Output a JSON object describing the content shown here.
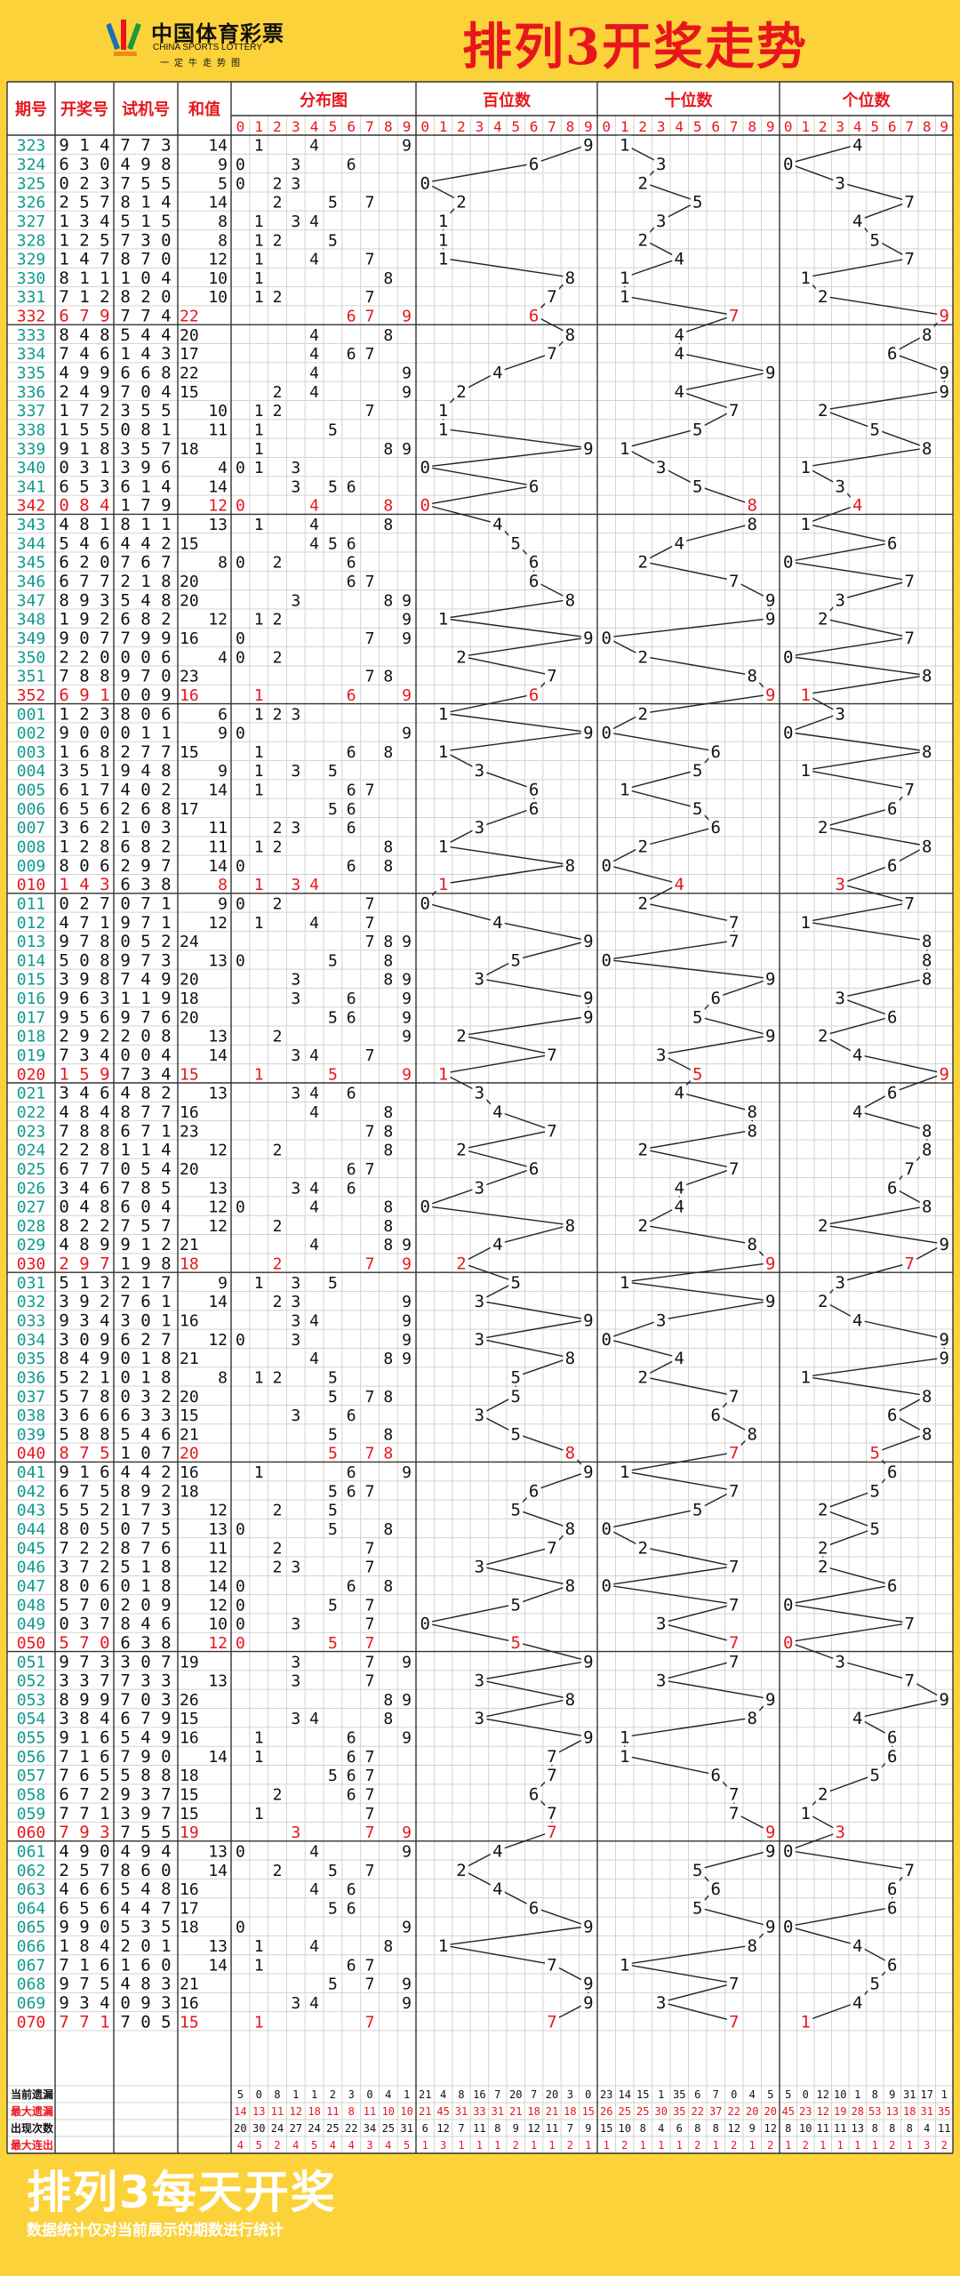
{
  "header": {
    "logo_cn": "中国体育彩票",
    "logo_en": "CHINA SPORTS LOTTERY",
    "logo_slogan": "一定牛走势图",
    "title": "排列3开奖走势"
  },
  "footer": {
    "title": "排列3每天开奖",
    "note": "数据统计仅对当前展示的期数进行统计"
  },
  "colors": {
    "background": "#fcd23a",
    "red": "#e8161c",
    "issue_green": "#0f9b8e",
    "grid": "#d3d3d3",
    "section": "#333333"
  },
  "chart_data": {
    "type": "table",
    "columns": {
      "issue": "期号",
      "draw": "开奖号",
      "test": "试机号",
      "sum": "和值",
      "dist": "分布图",
      "hundreds": "百位数",
      "tens": "十位数",
      "units": "个位数"
    },
    "digits": [
      "0",
      "1",
      "2",
      "3",
      "4",
      "5",
      "6",
      "7",
      "8",
      "9"
    ],
    "rows": [
      [
        "323",
        "914",
        "773"
      ],
      [
        "324",
        "630",
        "498"
      ],
      [
        "325",
        "023",
        "755"
      ],
      [
        "326",
        "257",
        "814"
      ],
      [
        "327",
        "134",
        "515"
      ],
      [
        "328",
        "125",
        "730"
      ],
      [
        "329",
        "147",
        "870"
      ],
      [
        "330",
        "811",
        "104"
      ],
      [
        "331",
        "712",
        "820"
      ],
      [
        "332",
        "679",
        "774"
      ],
      [
        "333",
        "848",
        "544"
      ],
      [
        "334",
        "746",
        "143"
      ],
      [
        "335",
        "499",
        "668"
      ],
      [
        "336",
        "249",
        "704"
      ],
      [
        "337",
        "172",
        "355"
      ],
      [
        "338",
        "155",
        "081"
      ],
      [
        "339",
        "918",
        "357"
      ],
      [
        "340",
        "031",
        "396"
      ],
      [
        "341",
        "653",
        "614"
      ],
      [
        "342",
        "084",
        "179"
      ],
      [
        "343",
        "481",
        "811"
      ],
      [
        "344",
        "546",
        "442"
      ],
      [
        "345",
        "620",
        "767"
      ],
      [
        "346",
        "677",
        "218"
      ],
      [
        "347",
        "893",
        "548"
      ],
      [
        "348",
        "192",
        "682"
      ],
      [
        "349",
        "907",
        "799"
      ],
      [
        "350",
        "220",
        "006"
      ],
      [
        "351",
        "788",
        "970"
      ],
      [
        "352",
        "691",
        "009"
      ],
      [
        "001",
        "123",
        "806"
      ],
      [
        "002",
        "900",
        "011"
      ],
      [
        "003",
        "168",
        "277"
      ],
      [
        "004",
        "351",
        "948"
      ],
      [
        "005",
        "617",
        "402"
      ],
      [
        "006",
        "656",
        "268"
      ],
      [
        "007",
        "362",
        "103"
      ],
      [
        "008",
        "128",
        "682"
      ],
      [
        "009",
        "806",
        "297"
      ],
      [
        "010",
        "143",
        "638"
      ],
      [
        "011",
        "027",
        "071"
      ],
      [
        "012",
        "471",
        "971"
      ],
      [
        "013",
        "978",
        "052"
      ],
      [
        "014",
        "508",
        "973"
      ],
      [
        "015",
        "398",
        "749"
      ],
      [
        "016",
        "963",
        "119"
      ],
      [
        "017",
        "956",
        "976"
      ],
      [
        "018",
        "292",
        "208"
      ],
      [
        "019",
        "734",
        "004"
      ],
      [
        "020",
        "159",
        "734"
      ],
      [
        "021",
        "346",
        "482"
      ],
      [
        "022",
        "484",
        "877"
      ],
      [
        "023",
        "788",
        "671"
      ],
      [
        "024",
        "228",
        "114"
      ],
      [
        "025",
        "677",
        "054"
      ],
      [
        "026",
        "346",
        "785"
      ],
      [
        "027",
        "048",
        "604"
      ],
      [
        "028",
        "822",
        "757"
      ],
      [
        "029",
        "489",
        "912"
      ],
      [
        "030",
        "297",
        "198"
      ],
      [
        "031",
        "513",
        "217"
      ],
      [
        "032",
        "392",
        "761"
      ],
      [
        "033",
        "934",
        "301"
      ],
      [
        "034",
        "309",
        "627"
      ],
      [
        "035",
        "849",
        "018"
      ],
      [
        "036",
        "521",
        "018"
      ],
      [
        "037",
        "578",
        "032"
      ],
      [
        "038",
        "366",
        "633"
      ],
      [
        "039",
        "588",
        "546"
      ],
      [
        "040",
        "875",
        "107"
      ],
      [
        "041",
        "916",
        "442"
      ],
      [
        "042",
        "675",
        "892"
      ],
      [
        "043",
        "552",
        "173"
      ],
      [
        "044",
        "805",
        "075"
      ],
      [
        "045",
        "722",
        "876"
      ],
      [
        "046",
        "372",
        "518"
      ],
      [
        "047",
        "806",
        "018"
      ],
      [
        "048",
        "570",
        "209"
      ],
      [
        "049",
        "037",
        "846"
      ],
      [
        "050",
        "570",
        "638"
      ],
      [
        "051",
        "973",
        "307"
      ],
      [
        "052",
        "337",
        "733"
      ],
      [
        "053",
        "899",
        "703"
      ],
      [
        "054",
        "384",
        "679"
      ],
      [
        "055",
        "916",
        "549"
      ],
      [
        "056",
        "716",
        "790"
      ],
      [
        "057",
        "765",
        "588"
      ],
      [
        "058",
        "672",
        "937"
      ],
      [
        "059",
        "771",
        "397"
      ],
      [
        "060",
        "793",
        "755"
      ],
      [
        "061",
        "490",
        "494"
      ],
      [
        "062",
        "257",
        "860"
      ],
      [
        "063",
        "466",
        "548"
      ],
      [
        "064",
        "656",
        "447"
      ],
      [
        "065",
        "990",
        "535"
      ],
      [
        "066",
        "184",
        "201"
      ],
      [
        "067",
        "716",
        "160"
      ],
      [
        "068",
        "975",
        "483"
      ],
      [
        "069",
        "934",
        "093"
      ],
      [
        "070",
        "771",
        "705"
      ]
    ],
    "stats": [
      {
        "label": "当前遗漏",
        "dist": [
          "5",
          "0",
          "8",
          "1",
          "1",
          "2",
          "3",
          "0",
          "4",
          "1"
        ],
        "hundreds": [
          "21",
          "4",
          "8",
          "16",
          "7",
          "20",
          "7",
          "20",
          "3",
          "0"
        ],
        "tens": [
          "23",
          "14",
          "15",
          "1",
          "35",
          "6",
          "7",
          "0",
          "4",
          "5"
        ],
        "units": [
          "5",
          "0",
          "12",
          "10",
          "1",
          "8",
          "9",
          "31",
          "17",
          "1"
        ]
      },
      {
        "label": "最大遗漏",
        "dist": [
          "14",
          "13",
          "11",
          "12",
          "18",
          "11",
          "8",
          "11",
          "10",
          "10"
        ],
        "hundreds": [
          "21",
          "45",
          "31",
          "33",
          "31",
          "21",
          "18",
          "21",
          "18",
          "15"
        ],
        "tens": [
          "26",
          "25",
          "25",
          "30",
          "35",
          "22",
          "37",
          "22",
          "20",
          "20"
        ],
        "units": [
          "45",
          "23",
          "12",
          "19",
          "28",
          "53",
          "13",
          "18",
          "31",
          "35"
        ]
      },
      {
        "label": "出现次数",
        "dist": [
          "20",
          "30",
          "24",
          "27",
          "24",
          "25",
          "22",
          "34",
          "25",
          "31"
        ],
        "hundreds": [
          "6",
          "12",
          "7",
          "11",
          "8",
          "9",
          "12",
          "11",
          "7",
          "9"
        ],
        "tens": [
          "15",
          "10",
          "8",
          "4",
          "6",
          "8",
          "8",
          "12",
          "9",
          "12"
        ],
        "units": [
          "8",
          "10",
          "11",
          "11",
          "13",
          "8",
          "8",
          "8",
          "4",
          "11"
        ]
      },
      {
        "label": "最大连出",
        "dist": [
          "4",
          "5",
          "2",
          "4",
          "5",
          "4",
          "4",
          "3",
          "4",
          "5"
        ],
        "hundreds": [
          "1",
          "3",
          "1",
          "1",
          "1",
          "2",
          "1",
          "1",
          "2",
          "1"
        ],
        "tens": [
          "1",
          "2",
          "1",
          "1",
          "1",
          "2",
          "1",
          "2",
          "1",
          "2"
        ],
        "units": [
          "1",
          "2",
          "1",
          "1",
          "1",
          "1",
          "2",
          "1",
          "3",
          "2"
        ]
      }
    ]
  }
}
